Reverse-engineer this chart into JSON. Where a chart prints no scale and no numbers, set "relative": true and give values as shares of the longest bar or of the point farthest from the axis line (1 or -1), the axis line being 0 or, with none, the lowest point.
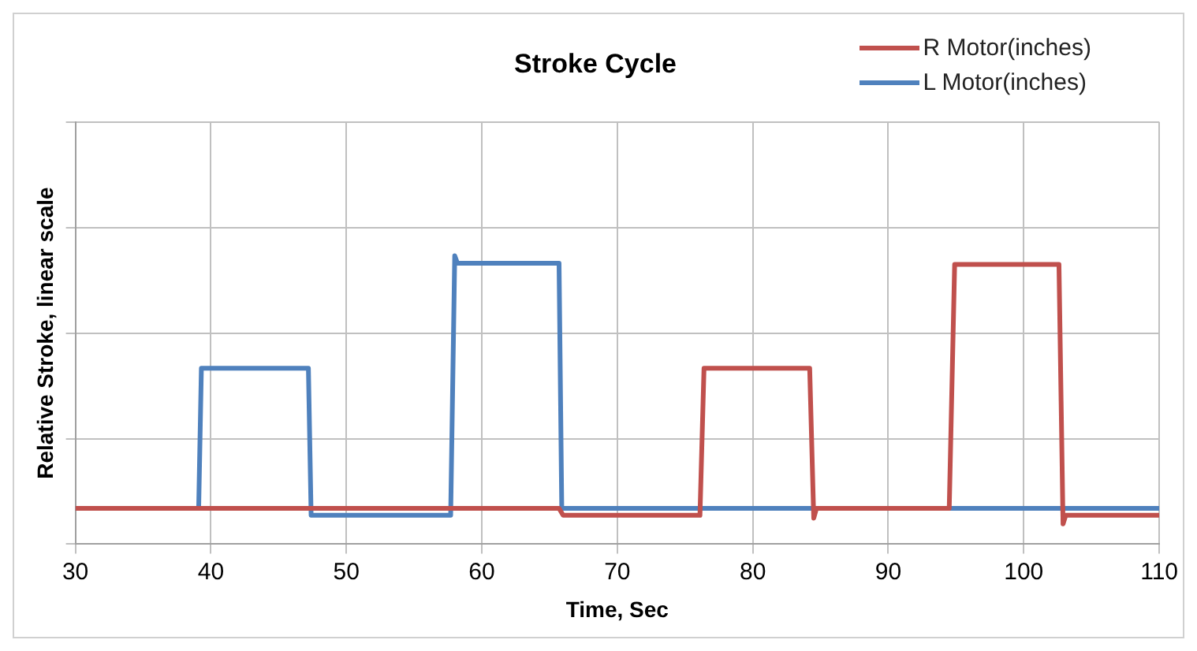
{
  "chart_data": {
    "type": "line",
    "title": "Stroke Cycle",
    "xlabel": "Time, Sec",
    "ylabel": "Relative Stroke, linear scale",
    "relative": true,
    "xlim": [
      30,
      110
    ],
    "xticks": [
      30,
      40,
      50,
      60,
      70,
      80,
      90,
      100,
      110
    ],
    "grid": true,
    "legend": "top right",
    "series": [
      {
        "name": "R Motor(inches)",
        "color": "#c0504d",
        "x": [
          30,
          65.7,
          66,
          76.1,
          76.4,
          84.2,
          84.5,
          84.7,
          94.5,
          94.9,
          102.6,
          102.9,
          103.1,
          110
        ],
        "values": [
          0.124,
          0.124,
          0.1,
          0.1,
          0.61,
          0.61,
          0.09,
          0.124,
          0.124,
          0.97,
          0.97,
          0.07,
          0.1,
          0.1
        ]
      },
      {
        "name": "L Motor(inches)",
        "color": "#4f81bd",
        "x": [
          30,
          39.1,
          39.3,
          47.2,
          47.4,
          57.7,
          58,
          58.2,
          65.7,
          65.9,
          110
        ],
        "values": [
          0.124,
          0.124,
          0.61,
          0.61,
          0.1,
          0.1,
          1,
          0.974,
          0.974,
          0.124,
          0.124
        ]
      }
    ]
  }
}
